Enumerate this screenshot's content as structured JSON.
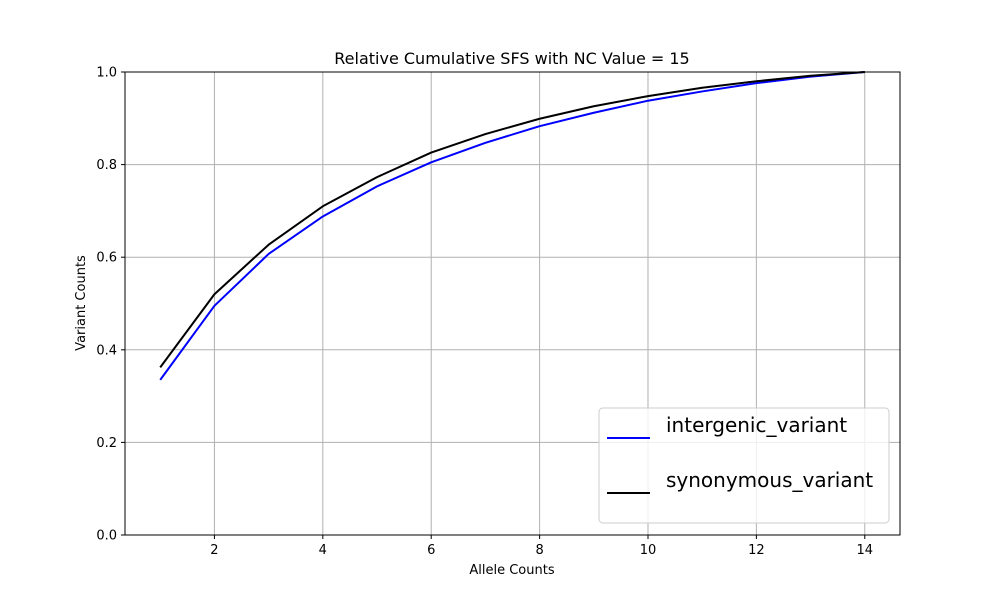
{
  "chart_data": {
    "type": "line",
    "title": "Relative Cumulative SFS with NC Value = 15",
    "xlabel": "Allele Counts",
    "ylabel": "Variant Counts",
    "xlim": [
      0.35,
      14.65
    ],
    "ylim": [
      0.0,
      1.0
    ],
    "xticks": [
      2,
      4,
      6,
      8,
      10,
      12,
      14
    ],
    "xtick_labels": [
      "2",
      "4",
      "6",
      "8",
      "10",
      "12",
      "14"
    ],
    "yticks": [
      0.0,
      0.2,
      0.4,
      0.6,
      0.8,
      1.0
    ],
    "ytick_labels": [
      "0.0",
      "0.2",
      "0.4",
      "0.6",
      "0.8",
      "1.0"
    ],
    "grid": true,
    "legend_position": "lower-right",
    "x": [
      1,
      2,
      3,
      4,
      5,
      6,
      7,
      8,
      9,
      10,
      11,
      12,
      13,
      14
    ],
    "series": [
      {
        "name": "intergenic_variant",
        "color": "#0000ff",
        "values": [
          0.335,
          0.495,
          0.607,
          0.688,
          0.753,
          0.805,
          0.847,
          0.883,
          0.912,
          0.938,
          0.958,
          0.976,
          0.99,
          1.0
        ]
      },
      {
        "name": "synonymous_variant",
        "color": "#000000",
        "values": [
          0.362,
          0.52,
          0.627,
          0.71,
          0.773,
          0.826,
          0.866,
          0.899,
          0.926,
          0.948,
          0.966,
          0.98,
          0.992,
          1.0
        ]
      }
    ]
  }
}
